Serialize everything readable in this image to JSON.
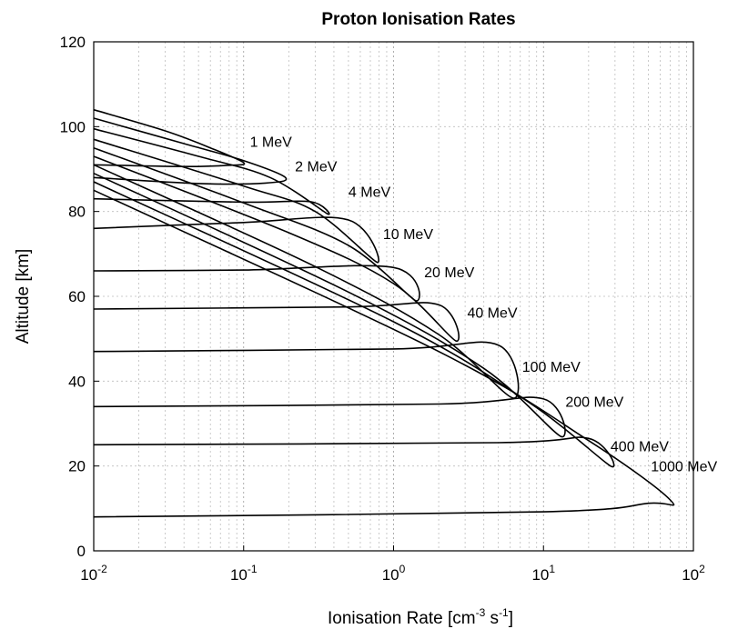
{
  "chart_data": {
    "type": "line",
    "title": "Proton Ionisation Rates",
    "xlabel": "Ionisation Rate [cm^-3 s^-1]",
    "xlabel_parts": {
      "main": "Ionisation Rate [cm",
      "exp1": "-3",
      "mid": " s",
      "exp2": "-1",
      "end": "]"
    },
    "ylabel": "Altitude [km]",
    "x_scale": "log",
    "xlim": [
      0.01,
      100
    ],
    "ylim": [
      0,
      120
    ],
    "grid": true,
    "x_ticks": [
      {
        "base": "10",
        "exp": "-2",
        "value": 0.01
      },
      {
        "base": "10",
        "exp": "-1",
        "value": 0.1
      },
      {
        "base": "10",
        "exp": "0",
        "value": 1
      },
      {
        "base": "10",
        "exp": "1",
        "value": 10
      },
      {
        "base": "10",
        "exp": "2",
        "value": 100
      }
    ],
    "y_ticks": [
      "0",
      "20",
      "40",
      "60",
      "80",
      "100",
      "120"
    ],
    "series": [
      {
        "name": "1 MeV",
        "upper": [
          [
            0.01,
            104
          ],
          [
            0.03,
            99
          ],
          [
            0.06,
            95
          ],
          [
            0.1,
            91.5
          ]
        ],
        "lower": [
          [
            0.01,
            91
          ],
          [
            0.04,
            90.6
          ],
          [
            0.08,
            90.9
          ],
          [
            0.1,
            91.5
          ]
        ],
        "label_at": [
          0.11,
          95.2
        ]
      },
      {
        "name": "2 MeV",
        "upper": [
          [
            0.01,
            102
          ],
          [
            0.04,
            96
          ],
          [
            0.1,
            92
          ],
          [
            0.19,
            88
          ]
        ],
        "lower": [
          [
            0.01,
            88
          ],
          [
            0.05,
            86.6
          ],
          [
            0.14,
            86.7
          ],
          [
            0.19,
            88
          ]
        ],
        "label_at": [
          0.22,
          89.5
        ]
      },
      {
        "name": "4 MeV",
        "upper": [
          [
            0.01,
            99.5
          ],
          [
            0.05,
            93
          ],
          [
            0.15,
            88
          ],
          [
            0.36,
            79.5
          ]
        ],
        "lower": [
          [
            0.01,
            83
          ],
          [
            0.1,
            82.2
          ],
          [
            0.28,
            82.3
          ],
          [
            0.36,
            79.5
          ]
        ],
        "label_at": [
          0.5,
          83.5
        ]
      },
      {
        "name": "10 MeV",
        "upper": [
          [
            0.01,
            97
          ],
          [
            0.1,
            86
          ],
          [
            0.3,
            80
          ],
          [
            0.78,
            68
          ]
        ],
        "lower": [
          [
            0.01,
            76
          ],
          [
            0.1,
            77.4
          ],
          [
            0.5,
            78
          ],
          [
            0.78,
            68
          ]
        ],
        "label_at": [
          0.85,
          73.5
        ]
      },
      {
        "name": "20 MeV",
        "upper": [
          [
            0.01,
            95
          ],
          [
            0.1,
            82
          ],
          [
            0.5,
            72
          ],
          [
            1.4,
            59
          ]
        ],
        "lower": [
          [
            0.01,
            66
          ],
          [
            0.1,
            66.2
          ],
          [
            1.0,
            66.8
          ],
          [
            1.4,
            59
          ]
        ],
        "label_at": [
          1.6,
          64.5
        ]
      },
      {
        "name": "40 MeV",
        "upper": [
          [
            0.01,
            93
          ],
          [
            0.2,
            75
          ],
          [
            1.0,
            63
          ],
          [
            2.6,
            49.5
          ]
        ],
        "lower": [
          [
            0.01,
            57
          ],
          [
            0.5,
            57.5
          ],
          [
            2.0,
            58
          ],
          [
            2.6,
            49.5
          ]
        ],
        "label_at": [
          3.1,
          55
        ]
      },
      {
        "name": "100 MeV",
        "upper": [
          [
            0.01,
            91
          ],
          [
            0.3,
            67
          ],
          [
            2.0,
            51
          ],
          [
            6.3,
            36
          ]
        ],
        "lower": [
          [
            0.01,
            47
          ],
          [
            1.0,
            47.6
          ],
          [
            5.0,
            48.5
          ],
          [
            6.3,
            36
          ]
        ],
        "label_at": [
          7.2,
          42.2
        ]
      },
      {
        "name": "200 MeV",
        "upper": [
          [
            0.01,
            89
          ],
          [
            0.5,
            61
          ],
          [
            4.0,
            43
          ],
          [
            13.0,
            27
          ]
        ],
        "lower": [
          [
            0.01,
            34
          ],
          [
            2.0,
            34.6
          ],
          [
            10.0,
            35.8
          ],
          [
            13.0,
            27
          ]
        ],
        "label_at": [
          14.0,
          34
        ]
      },
      {
        "name": "400 MeV",
        "upper": [
          [
            0.01,
            87
          ],
          [
            1.0,
            54
          ],
          [
            8.0,
            35
          ],
          [
            28.0,
            20
          ]
        ],
        "lower": [
          [
            0.01,
            25
          ],
          [
            5.0,
            25.5
          ],
          [
            20.0,
            26.5
          ],
          [
            28.0,
            20
          ]
        ],
        "label_at": [
          28.0,
          23.5
        ]
      },
      {
        "name": "1000 MeV",
        "upper": [
          [
            0.01,
            85
          ],
          [
            2.0,
            47
          ],
          [
            20.0,
            26
          ],
          [
            70.0,
            12
          ]
        ],
        "lower": [
          [
            0.01,
            8
          ],
          [
            10.0,
            9.2
          ],
          [
            50.0,
            11.2
          ],
          [
            70.0,
            12
          ]
        ],
        "label_at": [
          52.0,
          18.7
        ]
      }
    ]
  }
}
